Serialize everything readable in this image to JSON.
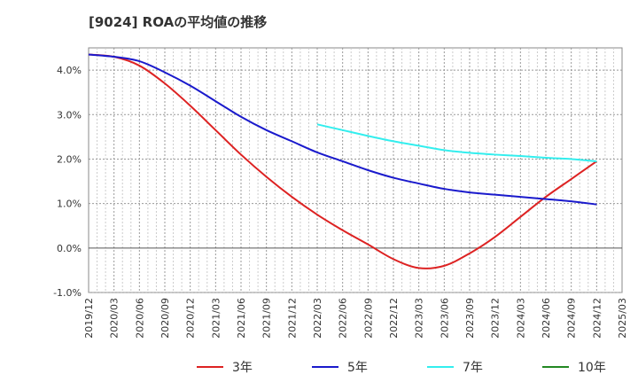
{
  "chart_data": {
    "type": "line",
    "title": "[9024]  ROAの平均値の推移",
    "xlabel": "",
    "ylabel": "",
    "ylim": [
      -1.0,
      4.5
    ],
    "yticks": [
      -1.0,
      0.0,
      1.0,
      2.0,
      3.0,
      4.0
    ],
    "ytick_labels": [
      "-1.0%",
      "0.0%",
      "1.0%",
      "2.0%",
      "3.0%",
      "4.0%"
    ],
    "xticks": [
      "2019/12",
      "2020/03",
      "2020/06",
      "2020/09",
      "2020/12",
      "2021/03",
      "2021/06",
      "2021/09",
      "2021/12",
      "2022/03",
      "2022/06",
      "2022/09",
      "2022/12",
      "2023/03",
      "2023/06",
      "2023/09",
      "2023/12",
      "2024/03",
      "2024/06",
      "2024/09",
      "2024/12",
      "2025/03"
    ],
    "grid": true,
    "legend_position": "bottom",
    "series": [
      {
        "name": "3年",
        "color": "#dd2222",
        "x": [
          "2019/12",
          "2020/03",
          "2020/06",
          "2020/09",
          "2020/12",
          "2021/03",
          "2021/06",
          "2021/09",
          "2021/12",
          "2022/03",
          "2022/06",
          "2022/09",
          "2022/12",
          "2023/03",
          "2023/06",
          "2023/09",
          "2023/12",
          "2024/03",
          "2024/06",
          "2024/09",
          "2024/12"
        ],
        "values": [
          4.35,
          4.3,
          4.1,
          3.7,
          3.2,
          2.65,
          2.1,
          1.6,
          1.15,
          0.75,
          0.4,
          0.08,
          -0.25,
          -0.45,
          -0.4,
          -0.12,
          0.25,
          0.7,
          1.15,
          1.55,
          1.95
        ]
      },
      {
        "name": "5年",
        "color": "#1a1acc",
        "x": [
          "2019/12",
          "2020/03",
          "2020/06",
          "2020/09",
          "2020/12",
          "2021/03",
          "2021/06",
          "2021/09",
          "2021/12",
          "2022/03",
          "2022/06",
          "2022/09",
          "2022/12",
          "2023/03",
          "2023/06",
          "2023/09",
          "2023/12",
          "2024/03",
          "2024/06",
          "2024/09",
          "2024/12"
        ],
        "values": [
          4.35,
          4.3,
          4.2,
          3.95,
          3.65,
          3.3,
          2.95,
          2.65,
          2.4,
          2.15,
          1.95,
          1.75,
          1.58,
          1.45,
          1.33,
          1.25,
          1.2,
          1.15,
          1.1,
          1.05,
          0.98
        ]
      },
      {
        "name": "7年",
        "color": "#33eeee",
        "x": [
          "2022/03",
          "2022/06",
          "2022/09",
          "2022/12",
          "2023/03",
          "2023/06",
          "2023/09",
          "2023/12",
          "2024/03",
          "2024/06",
          "2024/09",
          "2024/12"
        ],
        "values": [
          2.78,
          2.65,
          2.52,
          2.4,
          2.3,
          2.2,
          2.14,
          2.1,
          2.07,
          2.03,
          2.0,
          1.95
        ]
      },
      {
        "name": "10年",
        "color": "#228822",
        "x": [],
        "values": []
      }
    ]
  }
}
